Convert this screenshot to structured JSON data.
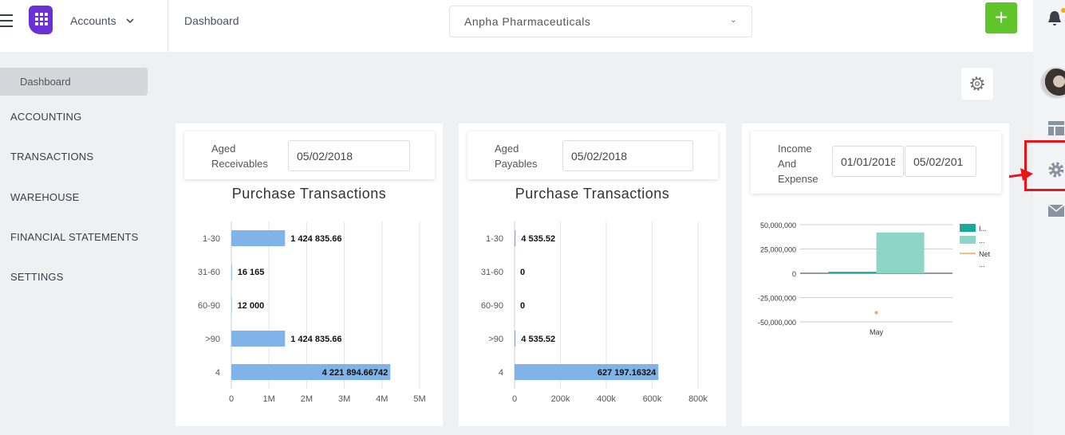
{
  "topbar": {
    "app_name": "Accounts",
    "breadcrumb": "Dashboard",
    "company": "Anpha Pharmaceuticals",
    "add_label": "+"
  },
  "sidebar": {
    "active": "Dashboard",
    "items": [
      "ACCOUNTING",
      "TRANSACTIONS",
      "WAREHOUSE",
      "FINANCIAL STATEMENTS",
      "SETTINGS"
    ]
  },
  "colors": {
    "bar": "#7fb3ea",
    "green": "#5fc52b",
    "income": "#18a99b",
    "expense": "#8ed5c7",
    "net": "#f5a55c",
    "highlight": "#e8141a",
    "logo": "#6b2fd6"
  },
  "widgets": [
    {
      "label": "Aged Receivables",
      "label_lines": [
        "Aged",
        "Receivables"
      ],
      "date": "05/02/2018",
      "title": "Purchase Transactions"
    },
    {
      "label": "Aged Payables",
      "label_lines": [
        "Aged",
        "Payables"
      ],
      "date": "05/02/2018",
      "title": "Purchase Transactions"
    },
    {
      "label": "Income And Expense",
      "label_lines": [
        "Income",
        "And",
        "Expense"
      ],
      "date_from": "01/01/2018",
      "date_to": "05/02/201"
    }
  ],
  "chart_data": [
    {
      "type": "bar",
      "orientation": "horizontal",
      "title": "Purchase Transactions",
      "categories": [
        "1-30",
        "31-60",
        "60-90",
        ">90",
        "4"
      ],
      "values": [
        1424835.66,
        16165,
        12000,
        1424835.66,
        4221894.66742
      ],
      "data_labels": [
        "1 424 835.66",
        "16 165",
        "12 000",
        "1 424 835.66",
        "4 221 894.66742"
      ],
      "xlim": [
        0,
        5000000
      ],
      "xticks": [
        "0",
        "1M",
        "2M",
        "3M",
        "4M",
        "5M"
      ],
      "grid": true
    },
    {
      "type": "bar",
      "orientation": "horizontal",
      "title": "Purchase Transactions",
      "categories": [
        "1-30",
        "31-60",
        "60-90",
        ">90",
        "4"
      ],
      "values": [
        4535.52,
        0,
        0,
        4535.52,
        627197.16324
      ],
      "data_labels": [
        "4 535.52",
        "0",
        "0",
        "4 535.52",
        "627 197.16324"
      ],
      "xlim": [
        0,
        800000
      ],
      "xticks": [
        "0",
        "200k",
        "400k",
        "600k",
        "800k"
      ],
      "grid": true
    },
    {
      "type": "bar",
      "categories": [
        "May"
      ],
      "series": [
        {
          "name": "I...",
          "values": [
            1500000
          ]
        },
        {
          "name": "...",
          "values": [
            42000000
          ]
        },
        {
          "name": "Net ...",
          "values": [
            -40500000
          ]
        }
      ],
      "ylim": [
        -50000000,
        50000000
      ],
      "yticks": [
        "50,000,000",
        "25,000,000",
        "0",
        "-25,000,000",
        "-50,000,000"
      ],
      "legend": "right"
    }
  ]
}
